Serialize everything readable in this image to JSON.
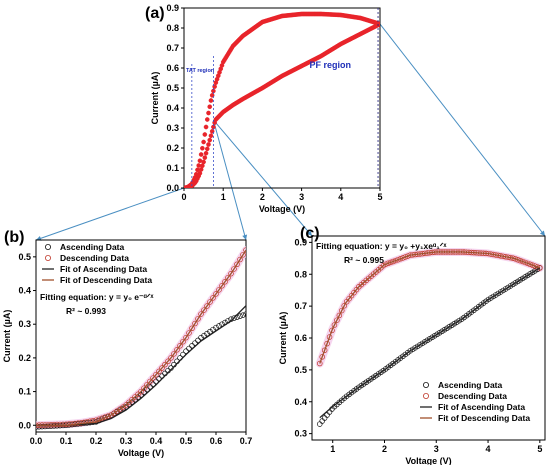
{
  "chart_data": [
    {
      "panel": "(a)",
      "type": "scatter",
      "xlabel": "Voltage (V)",
      "ylabel": "Current (µA)",
      "xlim": [
        0,
        5
      ],
      "ylim": [
        0,
        0.9
      ],
      "x_ticks": [
        0,
        1,
        2,
        3,
        4,
        5
      ],
      "y_ticks": [
        0.0,
        0.1,
        0.2,
        0.3,
        0.4,
        0.5,
        0.6,
        0.7,
        0.8,
        0.9
      ],
      "annotations": [
        "TAT region",
        "PF region"
      ],
      "guide_lines_x": [
        0.2,
        0.75,
        4.95
      ],
      "series": [
        {
          "name": "Ascending",
          "color": "#e8242b",
          "x": [
            0.0,
            0.1,
            0.2,
            0.3,
            0.4,
            0.5,
            0.6,
            0.7,
            0.8,
            1.0,
            1.25,
            1.5,
            2.0,
            2.5,
            3.0,
            3.5,
            4.0,
            4.5,
            5.0
          ],
          "y": [
            0.0,
            0.002,
            0.01,
            0.03,
            0.07,
            0.13,
            0.2,
            0.27,
            0.34,
            0.38,
            0.415,
            0.445,
            0.5,
            0.56,
            0.61,
            0.66,
            0.72,
            0.77,
            0.82
          ]
        },
        {
          "name": "Descending",
          "color": "#e8242b",
          "x": [
            0.0,
            0.1,
            0.2,
            0.3,
            0.4,
            0.5,
            0.6,
            0.7,
            0.8,
            1.0,
            1.25,
            1.5,
            2.0,
            2.5,
            3.0,
            3.5,
            4.0,
            4.5,
            5.0
          ],
          "y": [
            0.0,
            0.005,
            0.02,
            0.06,
            0.13,
            0.23,
            0.35,
            0.45,
            0.52,
            0.63,
            0.71,
            0.76,
            0.83,
            0.86,
            0.87,
            0.87,
            0.865,
            0.85,
            0.82
          ]
        }
      ]
    },
    {
      "panel": "(b)",
      "type": "scatter",
      "xlabel": "Voltage (V)",
      "ylabel": "Current (µA)",
      "xlim": [
        0,
        0.7
      ],
      "ylim": [
        -0.02,
        0.55
      ],
      "x_ticks": [
        0.0,
        0.1,
        0.2,
        0.3,
        0.4,
        0.5,
        0.6,
        0.7
      ],
      "y_ticks": [
        0.0,
        0.1,
        0.2,
        0.3,
        0.4,
        0.5
      ],
      "legend": [
        "Ascending Data",
        "Descending Data",
        "Fit of Ascending Data",
        "Fit of Descending Data"
      ],
      "legend_position": "top-left",
      "equation": "Fitting equation: y = y₀ e⁻ᵅᐟˣ",
      "r_squared": "R² ~ 0.993",
      "series": [
        {
          "name": "Ascending Data",
          "marker": "circle",
          "color": "#111111",
          "x": [
            0.0,
            0.1,
            0.15,
            0.2,
            0.25,
            0.3,
            0.35,
            0.4,
            0.45,
            0.5,
            0.55,
            0.6,
            0.65,
            0.7
          ],
          "y": [
            -0.005,
            0.0,
            0.005,
            0.01,
            0.03,
            0.055,
            0.09,
            0.13,
            0.17,
            0.22,
            0.26,
            0.29,
            0.315,
            0.33
          ]
        },
        {
          "name": "Descending Data",
          "marker": "circle",
          "color": "#c0392b",
          "x": [
            0.0,
            0.1,
            0.15,
            0.2,
            0.25,
            0.3,
            0.35,
            0.4,
            0.45,
            0.5,
            0.55,
            0.6,
            0.65,
            0.7
          ],
          "y": [
            0.0,
            0.003,
            0.007,
            0.015,
            0.03,
            0.06,
            0.1,
            0.15,
            0.2,
            0.26,
            0.33,
            0.39,
            0.45,
            0.52
          ]
        },
        {
          "name": "Fit of Ascending Data",
          "marker": "line",
          "color": "#222222",
          "x": [
            0.0,
            0.1,
            0.2,
            0.25,
            0.3,
            0.35,
            0.4,
            0.45,
            0.5,
            0.55,
            0.6,
            0.65,
            0.7
          ],
          "y": [
            0.0,
            0.0,
            0.005,
            0.02,
            0.045,
            0.08,
            0.12,
            0.165,
            0.21,
            0.25,
            0.28,
            0.31,
            0.355
          ]
        },
        {
          "name": "Fit of Descending Data",
          "marker": "line",
          "color": "#a0522d",
          "x": [
            0.0,
            0.1,
            0.2,
            0.25,
            0.3,
            0.35,
            0.4,
            0.45,
            0.5,
            0.55,
            0.6,
            0.65,
            0.7
          ],
          "y": [
            0.0,
            0.0,
            0.01,
            0.03,
            0.06,
            0.1,
            0.15,
            0.2,
            0.26,
            0.33,
            0.39,
            0.45,
            0.52
          ]
        }
      ]
    },
    {
      "panel": "(c)",
      "type": "scatter",
      "xlabel": "Voltage (V)",
      "ylabel": "Current (µA)",
      "xlim": [
        0.6,
        5.1
      ],
      "ylim": [
        0.28,
        0.92
      ],
      "x_ticks": [
        1,
        2,
        3,
        4,
        5
      ],
      "y_ticks": [
        0.3,
        0.4,
        0.5,
        0.6,
        0.7,
        0.8,
        0.9
      ],
      "legend": [
        "Ascending Data",
        "Descending Data",
        "Fit of Ascending Data",
        "Fit of Descending Data"
      ],
      "legend_position": "bottom-right",
      "equation": "Fitting equation: y = y₀ +y₁xeᵅ₁ᐟˣ",
      "r_squared": "R² ~ 0.995",
      "series": [
        {
          "name": "Ascending Data",
          "marker": "circle",
          "color": "#111111",
          "x": [
            0.75,
            1.0,
            1.25,
            1.5,
            2.0,
            2.5,
            3.0,
            3.5,
            4.0,
            4.5,
            5.0
          ],
          "y": [
            0.33,
            0.38,
            0.415,
            0.445,
            0.5,
            0.56,
            0.61,
            0.66,
            0.72,
            0.77,
            0.82
          ]
        },
        {
          "name": "Descending Data",
          "marker": "circle",
          "color": "#c0392b",
          "x": [
            0.75,
            1.0,
            1.25,
            1.5,
            2.0,
            2.5,
            3.0,
            3.5,
            4.0,
            4.5,
            5.0
          ],
          "y": [
            0.52,
            0.63,
            0.71,
            0.76,
            0.83,
            0.86,
            0.87,
            0.87,
            0.865,
            0.85,
            0.82
          ]
        },
        {
          "name": "Fit of Ascending Data",
          "marker": "line",
          "color": "#222222",
          "x": [
            0.75,
            1.0,
            1.25,
            1.5,
            2.0,
            2.5,
            3.0,
            3.5,
            4.0,
            4.5,
            5.0
          ],
          "y": [
            0.35,
            0.385,
            0.415,
            0.445,
            0.5,
            0.56,
            0.61,
            0.66,
            0.72,
            0.77,
            0.82
          ]
        },
        {
          "name": "Fit of Descending Data",
          "marker": "line",
          "color": "#a0522d",
          "x": [
            0.75,
            1.0,
            1.25,
            1.5,
            2.0,
            2.5,
            3.0,
            3.5,
            4.0,
            4.5,
            5.0
          ],
          "y": [
            0.52,
            0.63,
            0.71,
            0.76,
            0.83,
            0.86,
            0.87,
            0.87,
            0.865,
            0.85,
            0.82
          ]
        }
      ]
    }
  ],
  "colors": {
    "connector": "#4a8fc2",
    "tat_line": "#3a4fc8",
    "pf_line": "#1a1a7a",
    "annotation": "#1f2fb8",
    "highlight": "#f3c9ea"
  }
}
